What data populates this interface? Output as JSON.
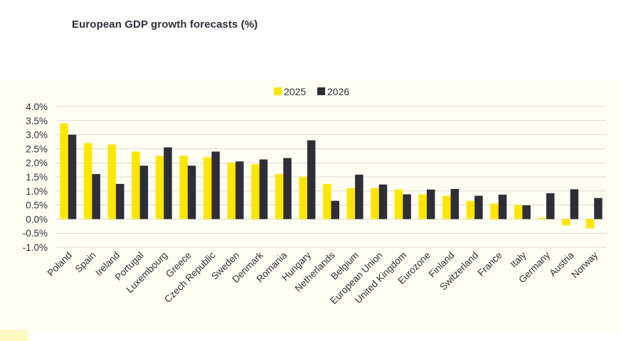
{
  "title": "European GDP growth forecasts (%)",
  "colors": {
    "series_2025": "#ffe600",
    "series_2026": "#2e2e38",
    "grid": "#d9d9d0",
    "text": "#2e2e38"
  },
  "chart_data": {
    "type": "bar",
    "title": "European GDP growth forecasts (%)",
    "xlabel": "",
    "ylabel": "",
    "ylim": [
      -1.0,
      4.0
    ],
    "yticks": [
      "4.0%",
      "3.5%",
      "3.0%",
      "2.5%",
      "2.0%",
      "1.5%",
      "1.0%",
      "0.5%",
      "0.0%",
      "-0.5%",
      "-1.0%"
    ],
    "ytick_values": [
      4.0,
      3.5,
      3.0,
      2.5,
      2.0,
      1.5,
      1.0,
      0.5,
      0.0,
      -0.5,
      -1.0
    ],
    "grid": true,
    "legend_position": "top-center",
    "categories": [
      "Poland",
      "Spain",
      "Ireland",
      "Portugal",
      "Luxembourg",
      "Greece",
      "Czech Republic",
      "Sweden",
      "Denmark",
      "Romania",
      "Hungary",
      "Netherlands",
      "Belgium",
      "European Union",
      "United Kingdom",
      "Eurozone",
      "Finland",
      "Switzerland",
      "France",
      "Italy",
      "Germany",
      "Austria",
      "Norway"
    ],
    "series": [
      {
        "name": "2025",
        "values": [
          3.4,
          2.7,
          2.65,
          2.4,
          2.25,
          2.25,
          2.2,
          2.0,
          1.95,
          1.6,
          1.5,
          1.25,
          1.1,
          1.1,
          1.05,
          0.88,
          0.83,
          0.65,
          0.55,
          0.5,
          0.05,
          -0.22,
          -0.33
        ]
      },
      {
        "name": "2026",
        "values": [
          3.0,
          1.6,
          1.25,
          1.9,
          2.55,
          1.9,
          2.4,
          2.05,
          2.12,
          2.17,
          2.8,
          0.65,
          1.58,
          1.23,
          0.88,
          1.05,
          1.07,
          0.83,
          0.87,
          0.49,
          0.92,
          1.06,
          0.75
        ]
      }
    ]
  }
}
